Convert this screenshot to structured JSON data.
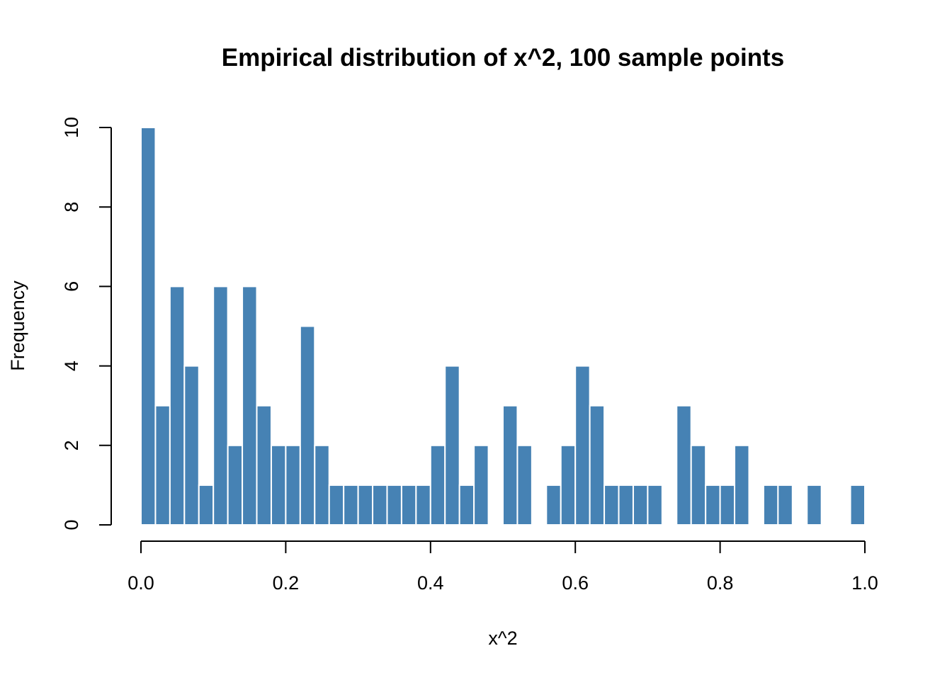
{
  "chart_data": {
    "type": "bar",
    "title": "Empirical distribution of x^2, 100 sample points",
    "xlabel": "x^2",
    "ylabel": "Frequency",
    "xlim": [
      0,
      1
    ],
    "ylim": [
      0,
      10
    ],
    "bin_width": 0.02,
    "bin_starts": [
      0.0,
      0.02,
      0.04,
      0.06,
      0.08,
      0.1,
      0.12,
      0.14,
      0.16,
      0.18,
      0.2,
      0.22,
      0.24,
      0.26,
      0.28,
      0.3,
      0.32,
      0.34,
      0.36,
      0.38,
      0.4,
      0.42,
      0.44,
      0.46,
      0.48,
      0.5,
      0.52,
      0.54,
      0.56,
      0.58,
      0.6,
      0.62,
      0.64,
      0.66,
      0.68,
      0.7,
      0.72,
      0.74,
      0.76,
      0.78,
      0.8,
      0.82,
      0.84,
      0.86,
      0.88,
      0.9,
      0.92,
      0.94,
      0.96,
      0.98
    ],
    "values": [
      10,
      3,
      6,
      4,
      1,
      6,
      2,
      6,
      3,
      2,
      2,
      5,
      2,
      1,
      1,
      1,
      1,
      1,
      1,
      1,
      2,
      4,
      1,
      2,
      0,
      3,
      2,
      0,
      1,
      2,
      4,
      3,
      1,
      1,
      1,
      1,
      0,
      3,
      2,
      1,
      1,
      2,
      0,
      1,
      1,
      0,
      1,
      0,
      0,
      1
    ],
    "x_ticks": [
      "0.0",
      "0.2",
      "0.4",
      "0.6",
      "0.8",
      "1.0"
    ],
    "y_ticks": [
      "0",
      "2",
      "4",
      "6",
      "8",
      "10"
    ],
    "bar_color": "#4682B4",
    "grid": false,
    "legend": "none"
  }
}
